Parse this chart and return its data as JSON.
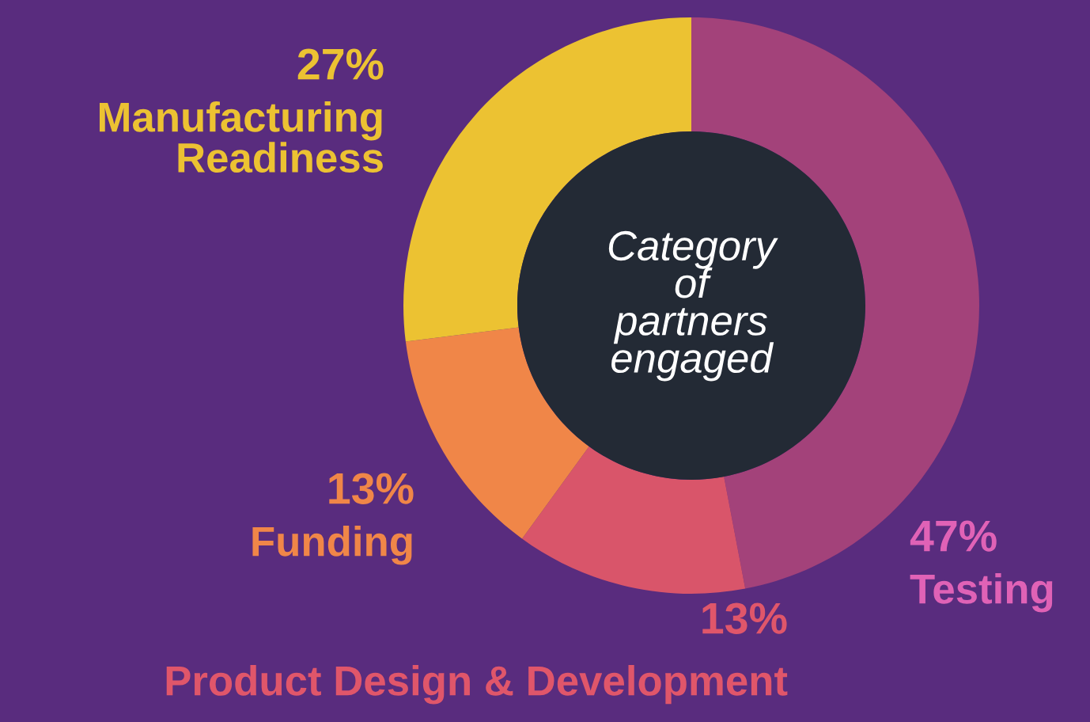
{
  "chart_data": {
    "type": "donut",
    "title": "Category\nof\npartners\nengaged",
    "categories": [
      "Testing",
      "Product Design & Development",
      "Funding",
      "Manufacturing\nReadiness"
    ],
    "values": [
      47,
      13,
      13,
      27
    ],
    "value_labels": [
      "47%",
      "13%",
      "13%",
      "27%"
    ],
    "colors": [
      "#a3427a",
      "#d9556a",
      "#f08648",
      "#ecc232"
    ],
    "legend": false
  }
}
